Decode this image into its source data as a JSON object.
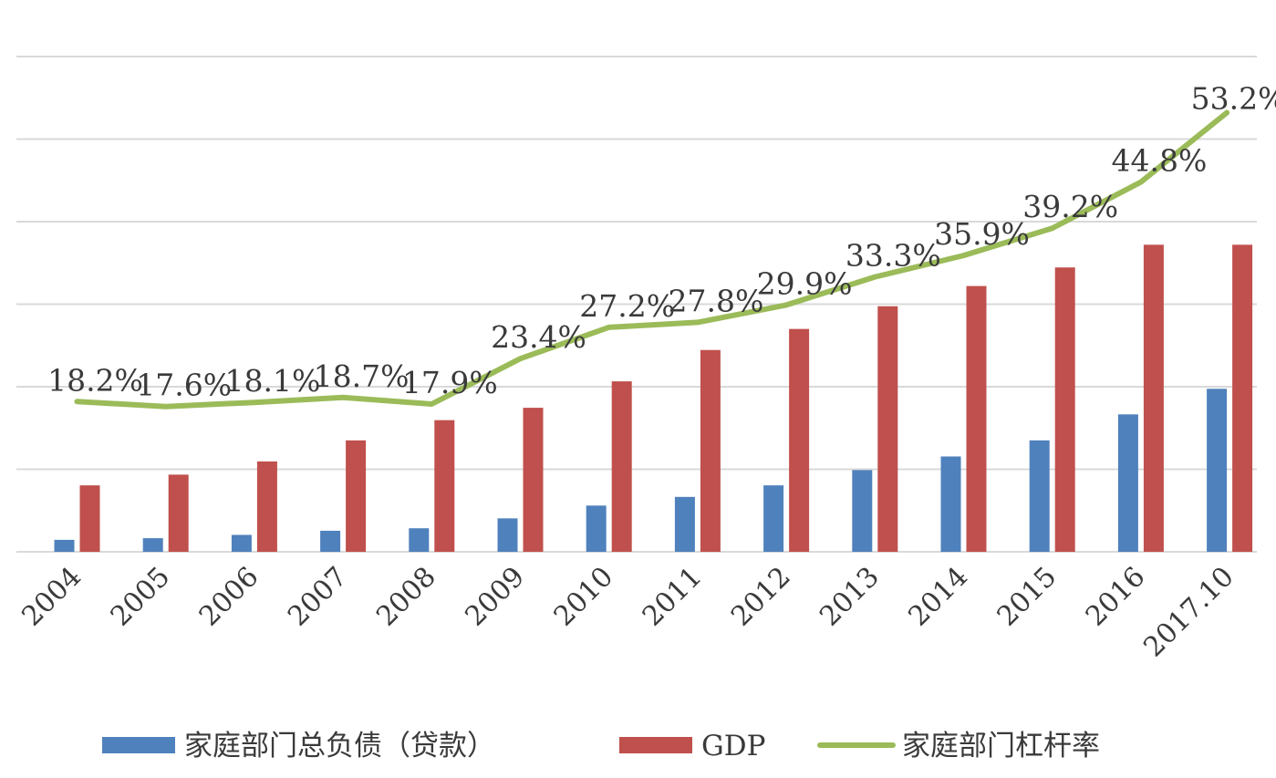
{
  "chart_data": {
    "type": "bar",
    "categories": [
      "2004",
      "2005",
      "2006",
      "2007",
      "2008",
      "2009",
      "2010",
      "2011",
      "2012",
      "2013",
      "2014",
      "2015",
      "2016",
      "2017.10"
    ],
    "series": [
      {
        "name": "家庭部门总负债（贷款）",
        "type": "bar",
        "axis": "left",
        "color": "#4f81bd",
        "values": [
          2.9,
          3.3,
          4.1,
          5.1,
          5.7,
          8.1,
          11.2,
          13.3,
          16.1,
          19.8,
          23.1,
          27.0,
          33.3,
          39.5
        ]
      },
      {
        "name": "GDP",
        "type": "bar",
        "axis": "left",
        "color": "#c0504d",
        "values": [
          16.1,
          18.7,
          21.9,
          27.0,
          31.9,
          34.9,
          41.3,
          48.9,
          54.0,
          59.5,
          64.4,
          68.9,
          74.4,
          74.4
        ]
      },
      {
        "name": "家庭部门杠杆率",
        "type": "line",
        "axis": "right",
        "color": "#9bbb59",
        "values": [
          18.2,
          17.6,
          18.1,
          18.7,
          17.9,
          23.4,
          27.2,
          27.8,
          29.9,
          33.3,
          35.9,
          39.2,
          44.8,
          53.2
        ],
        "labels": [
          "18.2%",
          "17.6%",
          "18.1%",
          "18.7%",
          "17.9%",
          "23.4%",
          "27.2%",
          "27.8%",
          "29.9%",
          "33.3%",
          "35.9%",
          "39.2%",
          "44.8%",
          "53.2%"
        ]
      }
    ],
    "ylim_left": [
      0,
      120
    ],
    "ylim_right": [
      0,
      60
    ],
    "grid": true,
    "legend": "bottom",
    "x_tick_rotation": "-45deg"
  }
}
